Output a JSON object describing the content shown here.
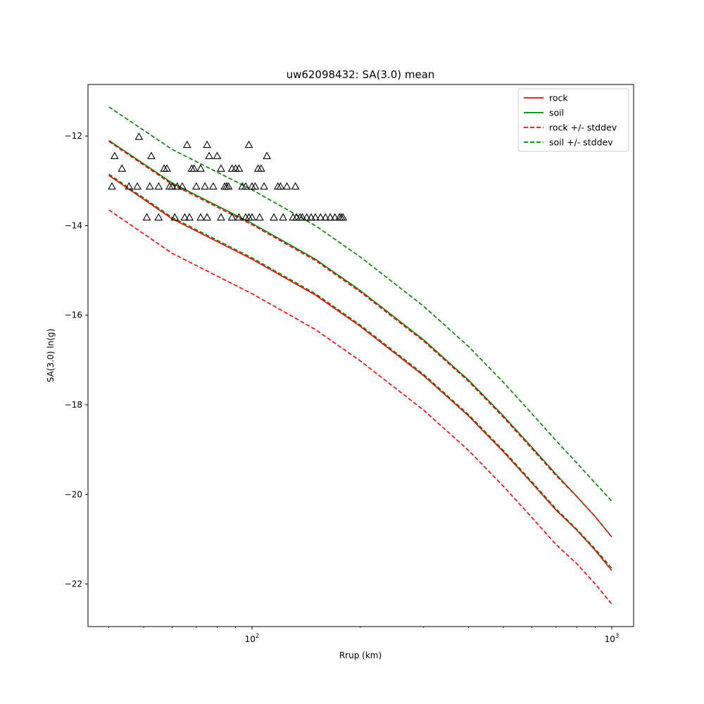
{
  "chart_data": {
    "type": "line",
    "title": "uw62098432: SA(3.0) mean",
    "xlabel": "Rrup (km)",
    "ylabel": "SA(3.0) ln(g)",
    "xscale": "log",
    "xlim": [
      35,
      1150
    ],
    "ylim": [
      -22.95,
      -10.85
    ],
    "x_ticks": [
      {
        "value": 100,
        "base": "10",
        "exp": "2"
      },
      {
        "value": 1000,
        "base": "10",
        "exp": "3"
      }
    ],
    "y_ticks": [
      -12,
      -14,
      -16,
      -18,
      -20,
      -22
    ],
    "y_tick_labels": [
      "−12",
      "−14",
      "−16",
      "−18",
      "−20",
      "−22"
    ],
    "grid": false,
    "legend_position": "top-right",
    "colors": {
      "rock": "#ff0000",
      "soil": "#008000",
      "observed": "#000000"
    },
    "series": [
      {
        "name": "rock",
        "style": "solid",
        "color": "#ff0000",
        "x": [
          40,
          60,
          100,
          150,
          200,
          300,
          400,
          500,
          600,
          700,
          800,
          900,
          1000
        ],
        "y": [
          -12.88,
          -13.85,
          -14.75,
          -15.55,
          -16.25,
          -17.35,
          -18.25,
          -19.05,
          -19.75,
          -20.35,
          -20.8,
          -21.25,
          -21.7
        ]
      },
      {
        "name": "soil",
        "style": "solid",
        "color": "#008000",
        "x": [
          40,
          60,
          100,
          150,
          200,
          300,
          400,
          500,
          600,
          700,
          800,
          900,
          1000
        ],
        "y": [
          -12.1,
          -13.05,
          -13.95,
          -14.75,
          -15.45,
          -16.55,
          -17.45,
          -18.25,
          -18.95,
          -19.55,
          -20.05,
          -20.5,
          -20.95
        ]
      },
      {
        "name": "rock +/- stddev",
        "style": "dashed",
        "color": "#ff0000",
        "x": [
          40,
          60,
          100,
          150,
          200,
          300,
          400,
          500,
          600,
          700,
          800,
          900,
          1000
        ],
        "y": [
          -12.12,
          -13.08,
          -13.98,
          -14.78,
          -15.48,
          -16.58,
          -17.48,
          -18.28,
          -18.98,
          -19.58,
          -20.05,
          -20.5,
          -20.95
        ]
      },
      {
        "name": "",
        "style": "dashed",
        "color": "#ff0000",
        "x": [
          40,
          60,
          100,
          150,
          200,
          300,
          400,
          500,
          600,
          700,
          800,
          900,
          1000
        ],
        "y": [
          -13.65,
          -14.62,
          -15.52,
          -16.32,
          -17.02,
          -18.12,
          -19.02,
          -19.82,
          -20.52,
          -21.12,
          -21.55,
          -22.0,
          -22.45
        ]
      },
      {
        "name": "soil +/- stddev",
        "style": "dashed",
        "color": "#008000",
        "x": [
          40,
          60,
          100,
          150,
          200,
          300,
          400,
          500,
          600,
          700,
          800,
          900,
          1000
        ],
        "y": [
          -11.35,
          -12.3,
          -13.2,
          -14.0,
          -14.7,
          -15.8,
          -16.7,
          -17.5,
          -18.2,
          -18.8,
          -19.3,
          -19.75,
          -20.15
        ]
      },
      {
        "name": "",
        "style": "dashed",
        "color": "#008000",
        "x": [
          40,
          60,
          100,
          150,
          200,
          300,
          400,
          500,
          600,
          700,
          800,
          900,
          1000
        ],
        "y": [
          -12.85,
          -13.82,
          -14.72,
          -15.52,
          -16.22,
          -17.32,
          -18.22,
          -19.02,
          -19.72,
          -20.32,
          -20.78,
          -21.22,
          -21.65
        ]
      }
    ],
    "scatter": {
      "marker": "triangle",
      "color": "#000000",
      "points": [
        [
          48.5,
          -12.02
        ],
        [
          41.5,
          -12.45
        ],
        [
          52.5,
          -12.45
        ],
        [
          43.5,
          -12.73
        ],
        [
          40.8,
          -13.13
        ],
        [
          45.5,
          -13.13
        ],
        [
          48,
          -13.13
        ],
        [
          52,
          -13.13
        ],
        [
          55,
          -13.13
        ],
        [
          57,
          -12.73
        ],
        [
          58,
          -12.73
        ],
        [
          59,
          -13.13
        ],
        [
          60,
          -13.13
        ],
        [
          62,
          -13.13
        ],
        [
          64,
          -13.13
        ],
        [
          66,
          -12.2
        ],
        [
          68,
          -12.73
        ],
        [
          69,
          -12.73
        ],
        [
          70,
          -13.13
        ],
        [
          72,
          -12.73
        ],
        [
          74,
          -13.13
        ],
        [
          75,
          -12.2
        ],
        [
          76,
          -12.45
        ],
        [
          78,
          -13.13
        ],
        [
          80,
          -12.45
        ],
        [
          82,
          -12.73
        ],
        [
          84,
          -13.13
        ],
        [
          85,
          -13.13
        ],
        [
          86,
          -13.13
        ],
        [
          88,
          -12.73
        ],
        [
          90,
          -12.73
        ],
        [
          92,
          -12.73
        ],
        [
          94,
          -13.13
        ],
        [
          96,
          -13.13
        ],
        [
          98,
          -12.2
        ],
        [
          100,
          -13.13
        ],
        [
          102,
          -13.13
        ],
        [
          104,
          -12.73
        ],
        [
          106,
          -12.73
        ],
        [
          108,
          -13.13
        ],
        [
          110,
          -12.45
        ],
        [
          118,
          -13.13
        ],
        [
          120,
          -13.13
        ],
        [
          125,
          -13.13
        ],
        [
          132,
          -13.13
        ],
        [
          51,
          -13.82
        ],
        [
          55,
          -13.82
        ],
        [
          61,
          -13.82
        ],
        [
          65,
          -13.82
        ],
        [
          67,
          -13.82
        ],
        [
          72,
          -13.82
        ],
        [
          75,
          -13.82
        ],
        [
          82,
          -13.82
        ],
        [
          88,
          -13.82
        ],
        [
          92,
          -13.82
        ],
        [
          96,
          -13.82
        ],
        [
          98,
          -13.82
        ],
        [
          100,
          -13.82
        ],
        [
          105,
          -13.82
        ],
        [
          115,
          -13.82
        ],
        [
          122,
          -13.82
        ],
        [
          130,
          -13.82
        ],
        [
          133,
          -13.82
        ],
        [
          136,
          -13.82
        ],
        [
          138,
          -13.82
        ],
        [
          142,
          -13.82
        ],
        [
          146,
          -13.82
        ],
        [
          150,
          -13.82
        ],
        [
          155,
          -13.82
        ],
        [
          160,
          -13.82
        ],
        [
          165,
          -13.82
        ],
        [
          170,
          -13.82
        ],
        [
          175,
          -13.82
        ],
        [
          177,
          -13.82
        ],
        [
          179,
          -13.82
        ]
      ]
    },
    "legend": [
      {
        "label": "rock",
        "color": "#ff0000",
        "style": "solid"
      },
      {
        "label": "soil",
        "color": "#008000",
        "style": "solid"
      },
      {
        "label": "rock +/- stddev",
        "color": "#ff0000",
        "style": "dashed"
      },
      {
        "label": "soil +/- stddev",
        "color": "#008000",
        "style": "dashed"
      }
    ]
  }
}
